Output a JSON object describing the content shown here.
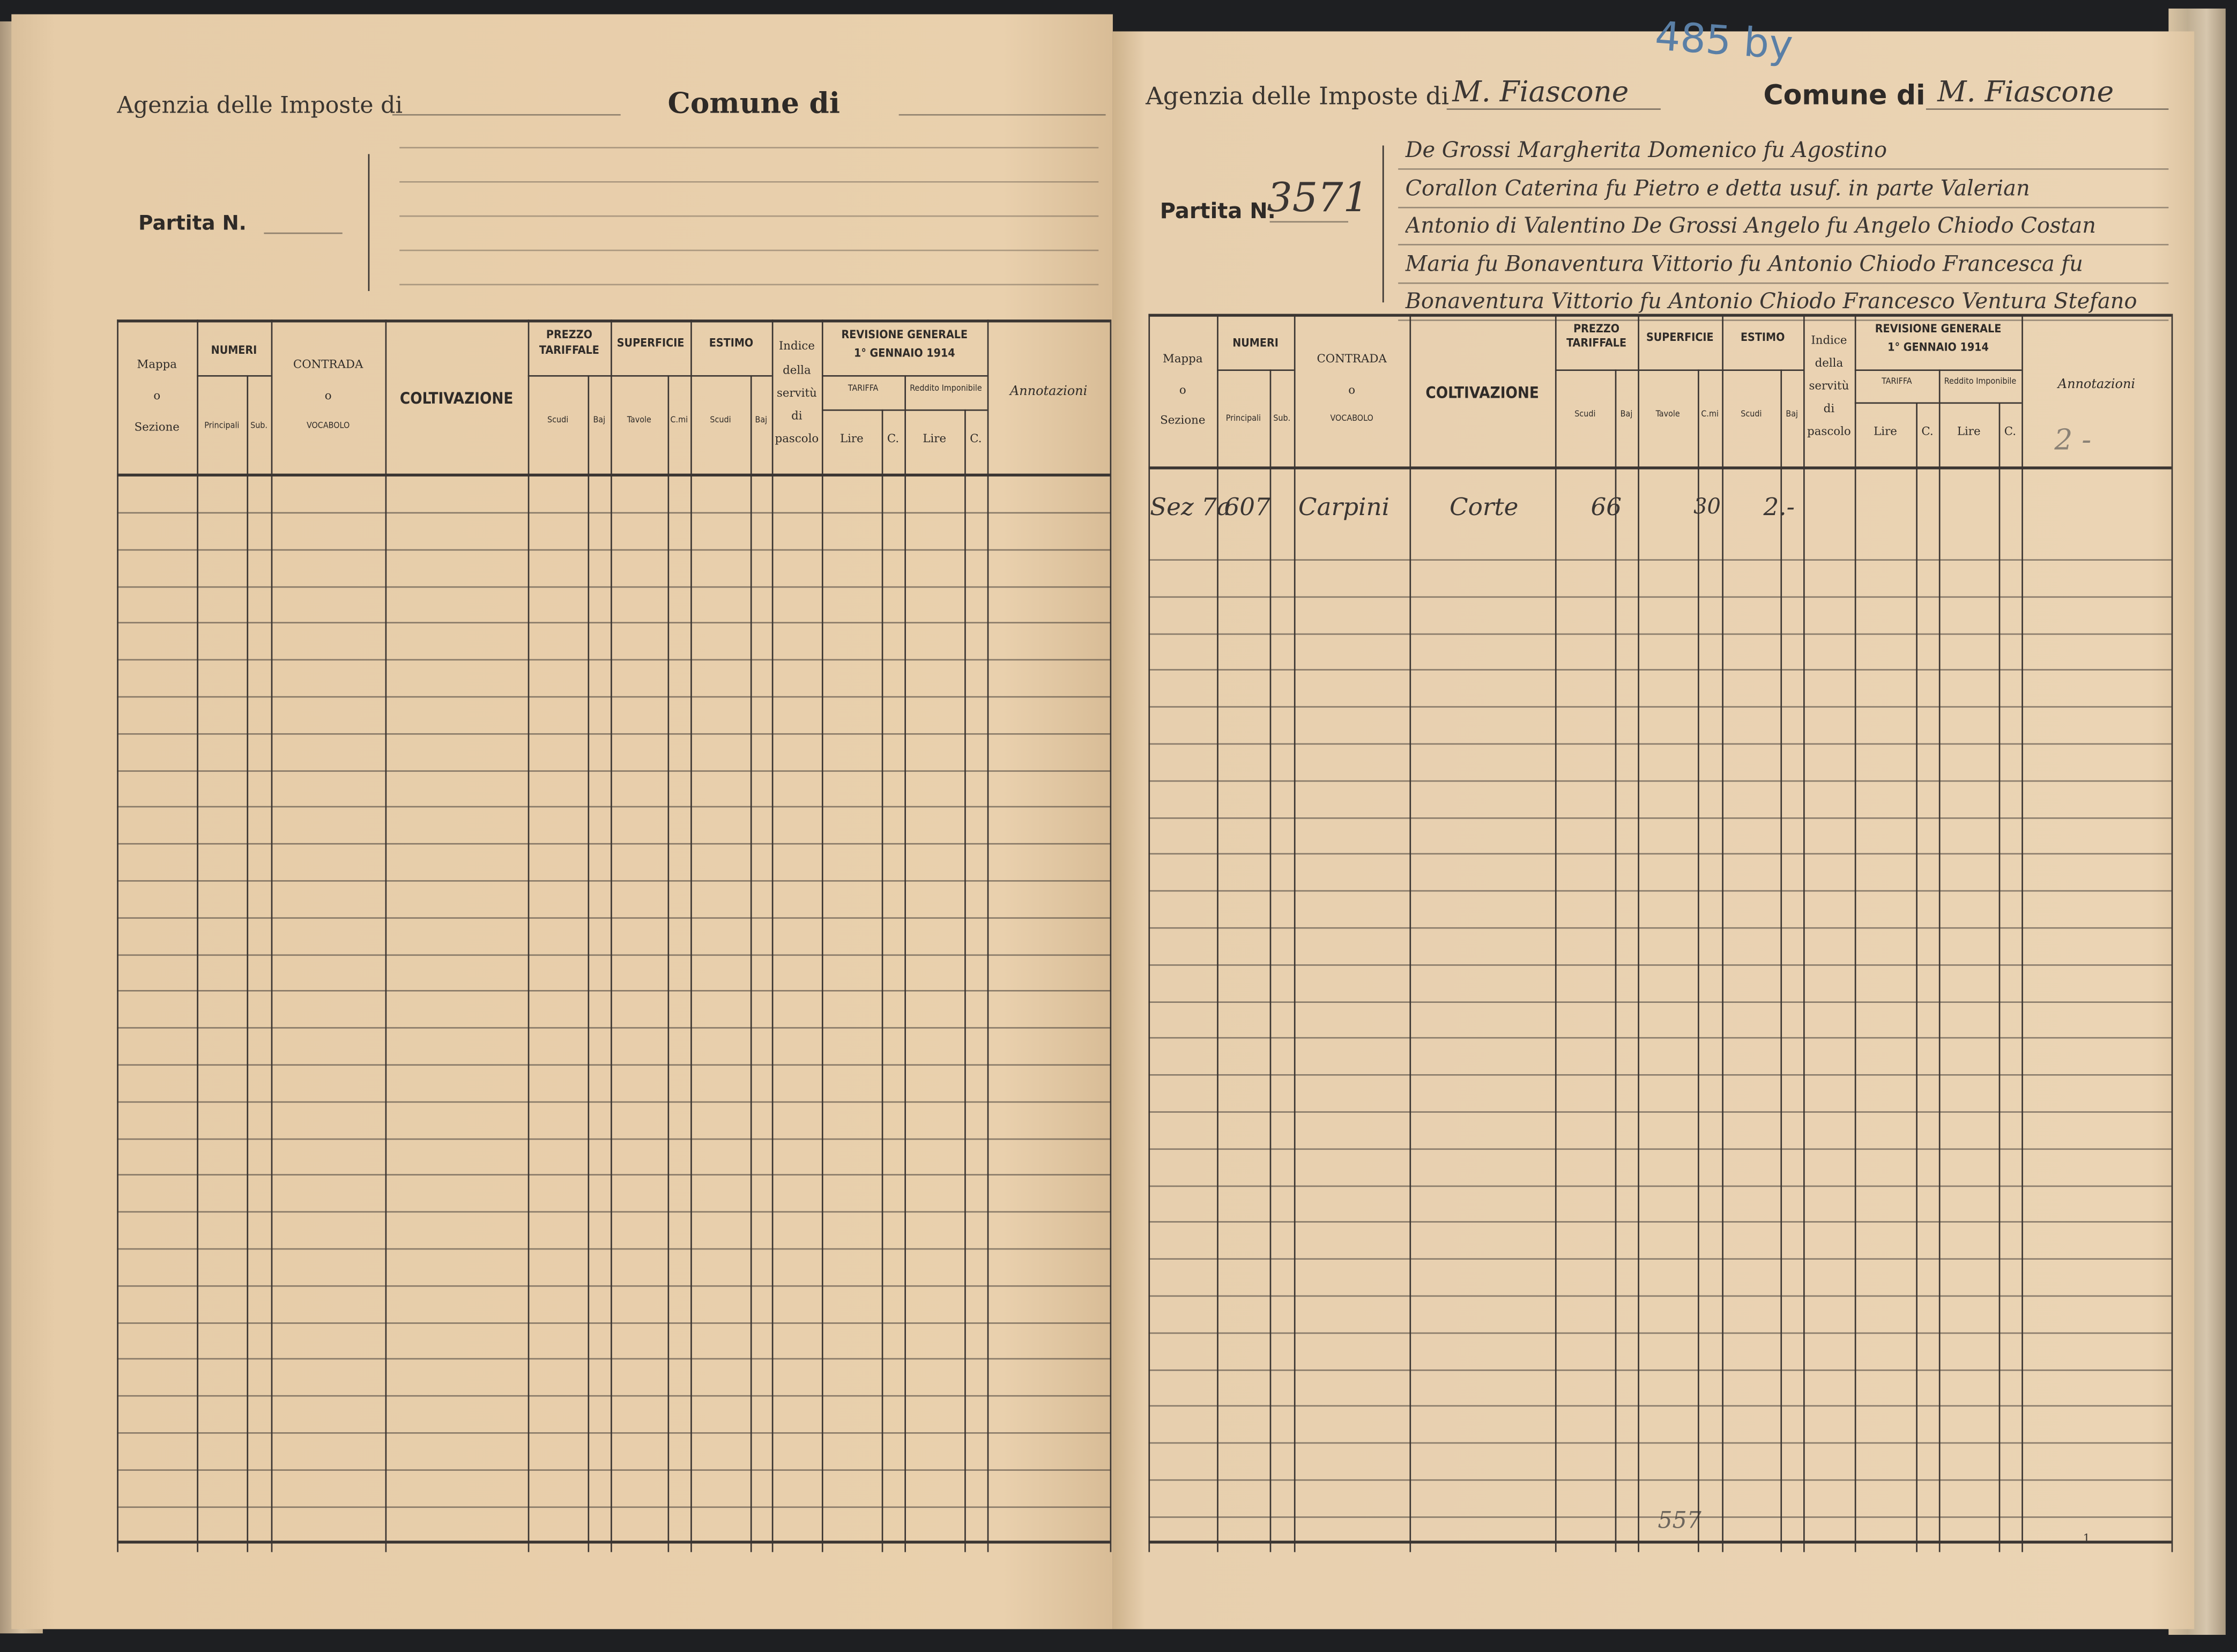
{
  "document": {
    "header": {
      "agenzia_label": "Agenzia delle Imposte di",
      "comune_label": "Comune di",
      "partita_label": "Partita N."
    },
    "table_headers": {
      "mappa": "Mappa",
      "o": "o",
      "sezione": "Sezione",
      "numeri": "NUMERI",
      "principali": "Principali",
      "sub": "Sub.",
      "contrada": "CONTRADA",
      "vocabolo": "VOCABOLO",
      "coltivazione": "COLTIVAZIONE",
      "prezzo": "PREZZO",
      "tariffale": "TARIFFALE",
      "scudi": "Scudi",
      "baj": "Baj",
      "superficie": "SUPERFICIE",
      "tavole": "Tavole",
      "cmi": "C.mi",
      "estimo": "ESTIMO",
      "indice": "Indice",
      "della": "della",
      "servitu": "servitù",
      "di": "di",
      "pascolo": "pascolo",
      "revisione": "REVISIONE GENERALE",
      "gennaio": "1° GENNAIO 1914",
      "tariffa": "TARIFFA",
      "reddito": "Reddito Imponibile",
      "lire": "Lire",
      "c": "C.",
      "annotazioni": "Annotazioni"
    },
    "right_page": {
      "archive_number": "485 by",
      "agenzia_value": "M. Fiascone",
      "comune_value": "M. Fiascone",
      "partita_number": "3571",
      "owners_lines": [
        "De Grossi Margherita Domenico fu Agostino",
        "Corallon Caterina fu Pietro e detta usuf. in parte Valerian",
        "Antonio di Valentino De Grossi Angelo fu Angelo Chiodo Costan",
        "Maria fu Bonaventura Vittorio fu Antonio Chiodo Francesca fu",
        "Bonaventura Vittorio fu Antonio Chiodo Francesco Ventura Stefano"
      ],
      "annotation_header_note": "2 -",
      "entry": {
        "mappa": "Sez 7a",
        "principali": "607",
        "vocabolo": "Carpini",
        "coltivazione": "Corte",
        "prezzo_scudi": "66",
        "tavole": "30",
        "estimo_scudi": "2.-"
      },
      "footer_note": "557",
      "page_mark": "1"
    },
    "colors": {
      "paper": "#e8cfae",
      "ink": "#3a3532",
      "blue_pencil": "#5a7fa6",
      "background": "#1e1f22"
    }
  }
}
